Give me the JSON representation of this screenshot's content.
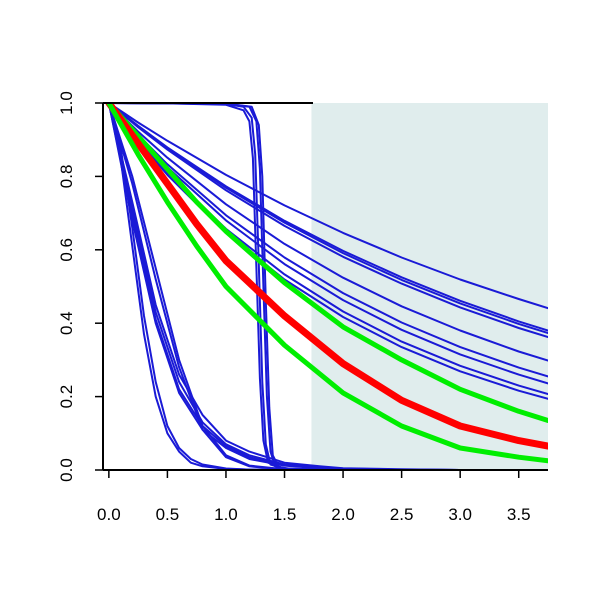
{
  "chart_data": {
    "type": "line",
    "title": "",
    "xlabel": "",
    "ylabel": "",
    "xlim": [
      -0.05,
      3.75
    ],
    "ylim": [
      0.0,
      1.0
    ],
    "xticks": [
      "0.0",
      "0.5",
      "1.0",
      "1.5",
      "2.0",
      "2.5",
      "3.0",
      "3.5"
    ],
    "yticks": [
      "0.0",
      "0.2",
      "0.4",
      "0.6",
      "0.8",
      "1.0"
    ],
    "grid": false,
    "legend": "none",
    "shaded_region": {
      "x_start": 1.73,
      "x_end": 3.75,
      "color": "#e0eded"
    },
    "colors": {
      "blue": "#1a1ad6",
      "red": "#ff0000",
      "green": "#00ee00",
      "axis": "#000000"
    },
    "series": [
      {
        "color": "blue",
        "width": 2,
        "x": [
          0,
          0.25,
          0.5,
          1.0,
          1.5,
          2.0,
          2.5,
          3.0,
          3.5,
          3.75
        ],
        "y": [
          1.0,
          0.947,
          0.897,
          0.804,
          0.721,
          0.646,
          0.579,
          0.519,
          0.466,
          0.441
        ]
      },
      {
        "color": "blue",
        "width": 2,
        "x": [
          0,
          0.25,
          0.5,
          1.0,
          1.5,
          2.0,
          2.5,
          3.0,
          3.5,
          3.75
        ],
        "y": [
          1.0,
          0.936,
          0.877,
          0.769,
          0.674,
          0.591,
          0.518,
          0.454,
          0.398,
          0.373
        ]
      },
      {
        "color": "blue",
        "width": 2,
        "x": [
          0,
          0.25,
          0.5,
          1.0,
          1.5,
          2.0,
          2.5,
          3.0,
          3.5,
          3.75
        ],
        "y": [
          1.0,
          0.938,
          0.879,
          0.773,
          0.679,
          0.597,
          0.525,
          0.461,
          0.405,
          0.38
        ]
      },
      {
        "color": "blue",
        "width": 2,
        "x": [
          0,
          0.25,
          0.5,
          1.0,
          1.5,
          2.0,
          2.5,
          3.0,
          3.5,
          3.75
        ],
        "y": [
          1.0,
          0.934,
          0.873,
          0.762,
          0.665,
          0.581,
          0.508,
          0.443,
          0.387,
          0.362
        ]
      },
      {
        "color": "blue",
        "width": 2,
        "x": [
          0,
          0.25,
          0.5,
          1.0,
          1.5,
          2.0,
          2.5,
          3.0,
          3.5,
          3.75
        ],
        "y": [
          1.0,
          0.922,
          0.851,
          0.724,
          0.616,
          0.524,
          0.446,
          0.38,
          0.323,
          0.298
        ]
      },
      {
        "color": "blue",
        "width": 2,
        "x": [
          0,
          0.25,
          0.5,
          1.0,
          1.5,
          2.0,
          2.5,
          3.0,
          3.5,
          3.75
        ],
        "y": [
          1.0,
          0.913,
          0.833,
          0.694,
          0.579,
          0.482,
          0.402,
          0.335,
          0.279,
          0.255
        ]
      },
      {
        "color": "blue",
        "width": 2,
        "x": [
          0,
          0.25,
          0.5,
          1.0,
          1.5,
          2.0,
          2.5,
          3.0,
          3.5,
          3.75
        ],
        "y": [
          1.0,
          0.908,
          0.825,
          0.68,
          0.561,
          0.463,
          0.382,
          0.315,
          0.26,
          0.236
        ]
      },
      {
        "color": "blue",
        "width": 2,
        "x": [
          0,
          0.25,
          0.5,
          1.0,
          1.5,
          2.0,
          2.5,
          3.0,
          3.5,
          3.75
        ],
        "y": [
          1.0,
          0.901,
          0.811,
          0.657,
          0.533,
          0.432,
          0.35,
          0.284,
          0.23,
          0.207
        ]
      },
      {
        "color": "blue",
        "width": 2,
        "x": [
          0,
          0.25,
          0.5,
          1.0,
          1.5,
          2.0,
          2.5,
          3.0,
          3.5,
          3.75
        ],
        "y": [
          1.0,
          0.897,
          0.804,
          0.646,
          0.519,
          0.417,
          0.335,
          0.269,
          0.216,
          0.194
        ]
      },
      {
        "color": "blue",
        "width": 2,
        "x": [
          0,
          0.1,
          0.2,
          0.3,
          0.4,
          0.5,
          0.6,
          0.7,
          0.8,
          1.0,
          1.2,
          1.5
        ],
        "y": [
          1.0,
          0.88,
          0.66,
          0.42,
          0.24,
          0.12,
          0.06,
          0.03,
          0.015,
          0.004,
          0.001,
          0.0
        ]
      },
      {
        "color": "blue",
        "width": 2,
        "x": [
          0,
          0.1,
          0.2,
          0.3,
          0.4,
          0.5,
          0.6,
          0.7,
          0.8,
          1.0,
          1.2,
          1.5
        ],
        "y": [
          1.0,
          0.85,
          0.61,
          0.37,
          0.2,
          0.1,
          0.05,
          0.02,
          0.01,
          0.003,
          0.001,
          0.0
        ]
      },
      {
        "color": "blue",
        "width": 2,
        "x": [
          0,
          0.2,
          0.4,
          0.6,
          0.8,
          1.0,
          1.2,
          1.5,
          1.8,
          2.0,
          2.5,
          3.0
        ],
        "y": [
          1.0,
          0.73,
          0.45,
          0.26,
          0.15,
          0.08,
          0.05,
          0.02,
          0.01,
          0.005,
          0.002,
          0.0
        ]
      },
      {
        "color": "blue",
        "width": 2,
        "x": [
          0,
          0.2,
          0.4,
          0.6,
          0.8,
          1.0,
          1.2,
          1.5,
          1.8,
          2.0,
          2.5,
          3.0
        ],
        "y": [
          1.0,
          0.71,
          0.43,
          0.24,
          0.13,
          0.07,
          0.04,
          0.015,
          0.007,
          0.004,
          0.001,
          0.0
        ]
      },
      {
        "color": "blue",
        "width": 2,
        "x": [
          0,
          0.2,
          0.4,
          0.6,
          0.8,
          1.0,
          1.2,
          1.5,
          1.8,
          2.0,
          2.5,
          3.0
        ],
        "y": [
          1.0,
          0.69,
          0.41,
          0.22,
          0.12,
          0.065,
          0.035,
          0.013,
          0.006,
          0.003,
          0.001,
          0.0
        ]
      },
      {
        "color": "blue",
        "width": 2,
        "x": [
          0,
          0.2,
          0.4,
          0.6,
          0.8,
          1.0,
          1.2,
          1.5,
          1.8,
          2.0,
          2.5,
          3.0
        ],
        "y": [
          1.0,
          0.68,
          0.4,
          0.21,
          0.11,
          0.06,
          0.03,
          0.012,
          0.005,
          0.003,
          0.001,
          0.0
        ]
      },
      {
        "color": "blue",
        "width": 2,
        "x": [
          0,
          0.2,
          0.4,
          0.6,
          0.8,
          1.0,
          1.2,
          1.5
        ],
        "y": [
          1.0,
          0.8,
          0.55,
          0.3,
          0.12,
          0.04,
          0.012,
          0.002
        ]
      },
      {
        "color": "blue",
        "width": 2,
        "x": [
          0,
          0.2,
          0.4,
          0.6,
          0.8,
          1.0,
          1.2,
          1.5
        ],
        "y": [
          1.0,
          0.78,
          0.52,
          0.28,
          0.11,
          0.035,
          0.01,
          0.001
        ]
      },
      {
        "color": "blue",
        "width": 2,
        "x": [
          0,
          0.5,
          1.0,
          1.15,
          1.2,
          1.23,
          1.26,
          1.29,
          1.32,
          1.36,
          1.5,
          2.0,
          3.0
        ],
        "y": [
          1.0,
          0.999,
          0.995,
          0.98,
          0.95,
          0.85,
          0.55,
          0.25,
          0.08,
          0.02,
          0.004,
          0.001,
          0.0
        ]
      },
      {
        "color": "blue",
        "width": 2,
        "x": [
          0,
          0.5,
          1.0,
          1.15,
          1.22,
          1.25,
          1.28,
          1.31,
          1.34,
          1.38,
          1.5,
          2.0,
          3.0
        ],
        "y": [
          1.0,
          0.999,
          0.997,
          0.99,
          0.96,
          0.86,
          0.56,
          0.24,
          0.07,
          0.015,
          0.003,
          0.0,
          0.0
        ]
      },
      {
        "color": "blue",
        "width": 2,
        "x": [
          0,
          0.5,
          1.0,
          1.2,
          1.26,
          1.29,
          1.32,
          1.35,
          1.38,
          1.42,
          1.55,
          2.0,
          3.0
        ],
        "y": [
          1.0,
          0.999,
          0.998,
          0.99,
          0.95,
          0.82,
          0.5,
          0.2,
          0.05,
          0.01,
          0.002,
          0.0,
          0.0
        ]
      },
      {
        "color": "blue",
        "width": 2,
        "x": [
          0,
          0.5,
          1.0,
          1.22,
          1.28,
          1.31,
          1.34,
          1.37,
          1.4,
          1.45,
          1.6,
          2.0,
          3.0
        ],
        "y": [
          1.0,
          0.999,
          0.998,
          0.99,
          0.94,
          0.8,
          0.46,
          0.17,
          0.04,
          0.008,
          0.001,
          0.0,
          0.0
        ]
      },
      {
        "color": "green",
        "width": 5,
        "x": [
          0,
          0.25,
          0.5,
          0.75,
          1.0,
          1.5,
          2.0,
          2.5,
          3.0,
          3.5,
          3.75
        ],
        "y": [
          1.0,
          0.91,
          0.82,
          0.73,
          0.65,
          0.51,
          0.39,
          0.3,
          0.22,
          0.16,
          0.135
        ]
      },
      {
        "color": "red",
        "width": 7,
        "x": [
          0,
          0.25,
          0.5,
          0.75,
          1.0,
          1.5,
          2.0,
          2.5,
          3.0,
          3.5,
          3.75
        ],
        "y": [
          1.0,
          0.89,
          0.78,
          0.67,
          0.57,
          0.42,
          0.29,
          0.19,
          0.12,
          0.08,
          0.065
        ]
      },
      {
        "color": "green",
        "width": 5,
        "x": [
          0,
          0.25,
          0.5,
          0.75,
          1.0,
          1.5,
          2.0,
          2.5,
          3.0,
          3.5,
          3.75
        ],
        "y": [
          1.0,
          0.86,
          0.73,
          0.61,
          0.5,
          0.34,
          0.21,
          0.12,
          0.06,
          0.035,
          0.025
        ]
      }
    ]
  }
}
